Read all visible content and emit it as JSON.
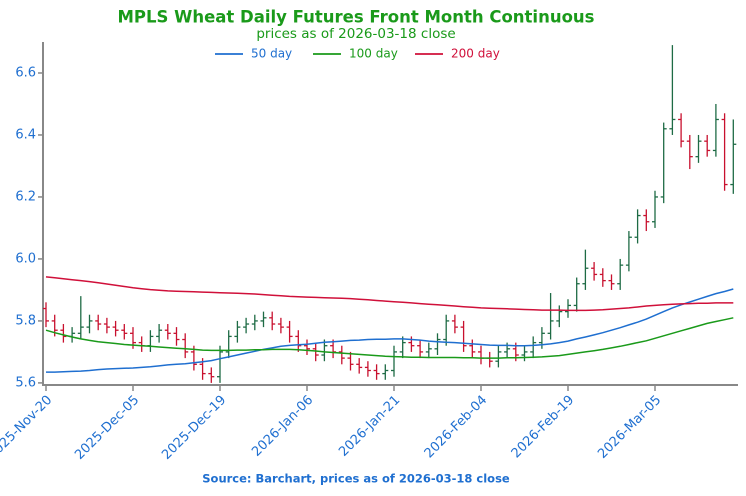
{
  "chart_data": {
    "type": "ohlc",
    "title": "MPLS Wheat Daily Futures Front Month Continuous",
    "subtitle": "prices as of 2026-03-18 close",
    "source": "Source: Barchart, prices as of 2026-03-18 close",
    "categories": [
      "2025-Nov-20",
      null,
      null,
      null,
      null,
      null,
      null,
      null,
      null,
      null,
      "2025-Dec-05",
      null,
      null,
      null,
      null,
      null,
      null,
      null,
      null,
      null,
      "2025-Dec-19",
      null,
      null,
      null,
      null,
      null,
      null,
      null,
      null,
      null,
      "2026-Jan-06",
      null,
      null,
      null,
      null,
      null,
      null,
      null,
      null,
      null,
      "2026-Jan-21",
      null,
      null,
      null,
      null,
      null,
      null,
      null,
      null,
      null,
      "2026-Feb-04",
      null,
      null,
      null,
      null,
      null,
      null,
      null,
      null,
      null,
      "2026-Feb-19",
      null,
      null,
      null,
      null,
      null,
      null,
      null,
      null,
      null,
      "2026-Mar-05",
      null,
      null,
      null,
      null,
      null,
      null,
      null,
      null,
      null
    ],
    "open": [
      5.84,
      5.8,
      5.77,
      5.75,
      5.76,
      5.78,
      5.8,
      5.79,
      5.78,
      5.77,
      5.76,
      5.73,
      5.72,
      5.75,
      5.77,
      5.76,
      5.74,
      5.7,
      5.66,
      5.63,
      5.62,
      5.7,
      5.75,
      5.78,
      5.79,
      5.8,
      5.81,
      5.79,
      5.78,
      5.75,
      5.72,
      5.71,
      5.69,
      5.72,
      5.7,
      5.68,
      5.66,
      5.65,
      5.64,
      5.63,
      5.64,
      5.7,
      5.73,
      5.72,
      5.7,
      5.71,
      5.74,
      5.8,
      5.78,
      5.72,
      5.7,
      5.68,
      5.67,
      5.7,
      5.71,
      5.69,
      5.7,
      5.73,
      5.76,
      5.8,
      5.83,
      5.85,
      5.92,
      5.97,
      5.95,
      5.93,
      5.92,
      5.98,
      6.07,
      6.14,
      6.12,
      6.2,
      6.42,
      6.45,
      6.38,
      6.33,
      6.38,
      6.35,
      6.45,
      6.24
    ],
    "high": [
      5.86,
      5.82,
      5.79,
      5.78,
      5.88,
      5.82,
      5.82,
      5.81,
      5.8,
      5.79,
      5.78,
      5.75,
      5.77,
      5.79,
      5.79,
      5.78,
      5.76,
      5.72,
      5.68,
      5.65,
      5.72,
      5.77,
      5.8,
      5.81,
      5.82,
      5.83,
      5.83,
      5.81,
      5.8,
      5.77,
      5.74,
      5.73,
      5.74,
      5.74,
      5.72,
      5.7,
      5.68,
      5.67,
      5.66,
      5.66,
      5.72,
      5.75,
      5.75,
      5.74,
      5.73,
      5.76,
      5.82,
      5.82,
      5.8,
      5.74,
      5.72,
      5.7,
      5.72,
      5.73,
      5.73,
      5.72,
      5.75,
      5.78,
      5.89,
      5.85,
      5.87,
      5.94,
      6.03,
      5.99,
      5.97,
      5.95,
      6.0,
      6.09,
      6.16,
      6.16,
      6.22,
      6.44,
      6.69,
      6.47,
      6.4,
      6.4,
      6.4,
      6.5,
      6.47,
      6.45
    ],
    "low": [
      5.78,
      5.75,
      5.73,
      5.73,
      5.74,
      5.76,
      5.77,
      5.76,
      5.75,
      5.74,
      5.71,
      5.7,
      5.7,
      5.73,
      5.74,
      5.72,
      5.68,
      5.64,
      5.61,
      5.6,
      5.6,
      5.68,
      5.73,
      5.76,
      5.77,
      5.78,
      5.77,
      5.76,
      5.73,
      5.7,
      5.69,
      5.67,
      5.67,
      5.68,
      5.66,
      5.64,
      5.63,
      5.62,
      5.61,
      5.61,
      5.62,
      5.68,
      5.7,
      5.68,
      5.68,
      5.69,
      5.72,
      5.76,
      5.7,
      5.68,
      5.66,
      5.65,
      5.65,
      5.68,
      5.67,
      5.67,
      5.68,
      5.71,
      5.74,
      5.78,
      5.81,
      5.83,
      5.9,
      5.93,
      5.91,
      5.9,
      5.9,
      5.96,
      6.05,
      6.09,
      6.1,
      6.18,
      6.4,
      6.36,
      6.29,
      6.31,
      6.33,
      6.33,
      6.22,
      6.21
    ],
    "close": [
      5.8,
      5.77,
      5.75,
      5.76,
      5.78,
      5.8,
      5.79,
      5.78,
      5.77,
      5.76,
      5.73,
      5.72,
      5.75,
      5.77,
      5.76,
      5.74,
      5.7,
      5.66,
      5.63,
      5.62,
      5.7,
      5.75,
      5.78,
      5.79,
      5.8,
      5.81,
      5.79,
      5.78,
      5.75,
      5.72,
      5.71,
      5.69,
      5.72,
      5.7,
      5.68,
      5.66,
      5.65,
      5.64,
      5.63,
      5.64,
      5.7,
      5.73,
      5.72,
      5.7,
      5.71,
      5.74,
      5.8,
      5.78,
      5.72,
      5.7,
      5.68,
      5.67,
      5.7,
      5.71,
      5.69,
      5.7,
      5.73,
      5.76,
      5.8,
      5.83,
      5.85,
      5.92,
      5.97,
      5.95,
      5.93,
      5.92,
      5.98,
      6.07,
      6.14,
      6.12,
      6.2,
      6.42,
      6.45,
      6.38,
      6.33,
      6.38,
      6.35,
      6.45,
      6.24,
      6.37
    ],
    "up_color": "#1e6b45",
    "down_color": "#c8102e",
    "series": [
      {
        "name": "50 day",
        "color": "#1f6fd0",
        "values": [
          5.635,
          5.635,
          5.636,
          5.637,
          5.638,
          5.64,
          5.643,
          5.645,
          5.646,
          5.647,
          5.648,
          5.65,
          5.652,
          5.655,
          5.658,
          5.66,
          5.662,
          5.665,
          5.668,
          5.672,
          5.678,
          5.684,
          5.69,
          5.696,
          5.702,
          5.708,
          5.713,
          5.718,
          5.721,
          5.723,
          5.725,
          5.728,
          5.731,
          5.733,
          5.735,
          5.737,
          5.738,
          5.74,
          5.741,
          5.741,
          5.742,
          5.742,
          5.74,
          5.738,
          5.735,
          5.733,
          5.731,
          5.73,
          5.728,
          5.726,
          5.724,
          5.722,
          5.721,
          5.721,
          5.72,
          5.72,
          5.721,
          5.723,
          5.726,
          5.73,
          5.735,
          5.742,
          5.748,
          5.755,
          5.762,
          5.77,
          5.778,
          5.787,
          5.796,
          5.806,
          5.818,
          5.83,
          5.842,
          5.852,
          5.861,
          5.87,
          5.879,
          5.888,
          5.895,
          5.903
        ]
      },
      {
        "name": "100 day",
        "color": "#1a9a1a",
        "values": [
          5.77,
          5.762,
          5.755,
          5.748,
          5.742,
          5.737,
          5.733,
          5.73,
          5.727,
          5.724,
          5.722,
          5.72,
          5.718,
          5.716,
          5.714,
          5.712,
          5.71,
          5.708,
          5.706,
          5.705,
          5.705,
          5.705,
          5.706,
          5.706,
          5.707,
          5.707,
          5.708,
          5.708,
          5.708,
          5.707,
          5.705,
          5.703,
          5.7,
          5.698,
          5.696,
          5.694,
          5.692,
          5.69,
          5.688,
          5.686,
          5.685,
          5.684,
          5.683,
          5.683,
          5.682,
          5.682,
          5.682,
          5.682,
          5.681,
          5.681,
          5.68,
          5.68,
          5.68,
          5.681,
          5.681,
          5.682,
          5.683,
          5.684,
          5.686,
          5.688,
          5.692,
          5.696,
          5.7,
          5.704,
          5.708,
          5.713,
          5.718,
          5.724,
          5.73,
          5.736,
          5.744,
          5.752,
          5.76,
          5.768,
          5.776,
          5.784,
          5.792,
          5.798,
          5.804,
          5.81
        ]
      },
      {
        "name": "200 day",
        "color": "#d0103a",
        "values": [
          5.942,
          5.939,
          5.936,
          5.933,
          5.93,
          5.927,
          5.923,
          5.919,
          5.915,
          5.911,
          5.907,
          5.904,
          5.901,
          5.899,
          5.897,
          5.896,
          5.895,
          5.894,
          5.893,
          5.892,
          5.891,
          5.89,
          5.889,
          5.888,
          5.887,
          5.885,
          5.883,
          5.881,
          5.879,
          5.878,
          5.877,
          5.876,
          5.875,
          5.874,
          5.873,
          5.872,
          5.87,
          5.868,
          5.866,
          5.864,
          5.862,
          5.86,
          5.858,
          5.856,
          5.854,
          5.852,
          5.85,
          5.848,
          5.846,
          5.844,
          5.842,
          5.841,
          5.84,
          5.839,
          5.838,
          5.837,
          5.836,
          5.835,
          5.835,
          5.835,
          5.834,
          5.834,
          5.834,
          5.835,
          5.836,
          5.838,
          5.84,
          5.842,
          5.845,
          5.848,
          5.85,
          5.852,
          5.854,
          5.855,
          5.856,
          5.857,
          5.857,
          5.858,
          5.858,
          5.858
        ]
      }
    ],
    "ylim": [
      5.59,
      6.7
    ],
    "yticks": [
      5.6,
      5.8,
      {
        "value": 6,
        "label": "6.0"
      },
      6.2,
      6.4,
      6.6
    ],
    "legend": "top",
    "title_color": "#1a9a1a",
    "tick_color": "#1f6fd0"
  }
}
